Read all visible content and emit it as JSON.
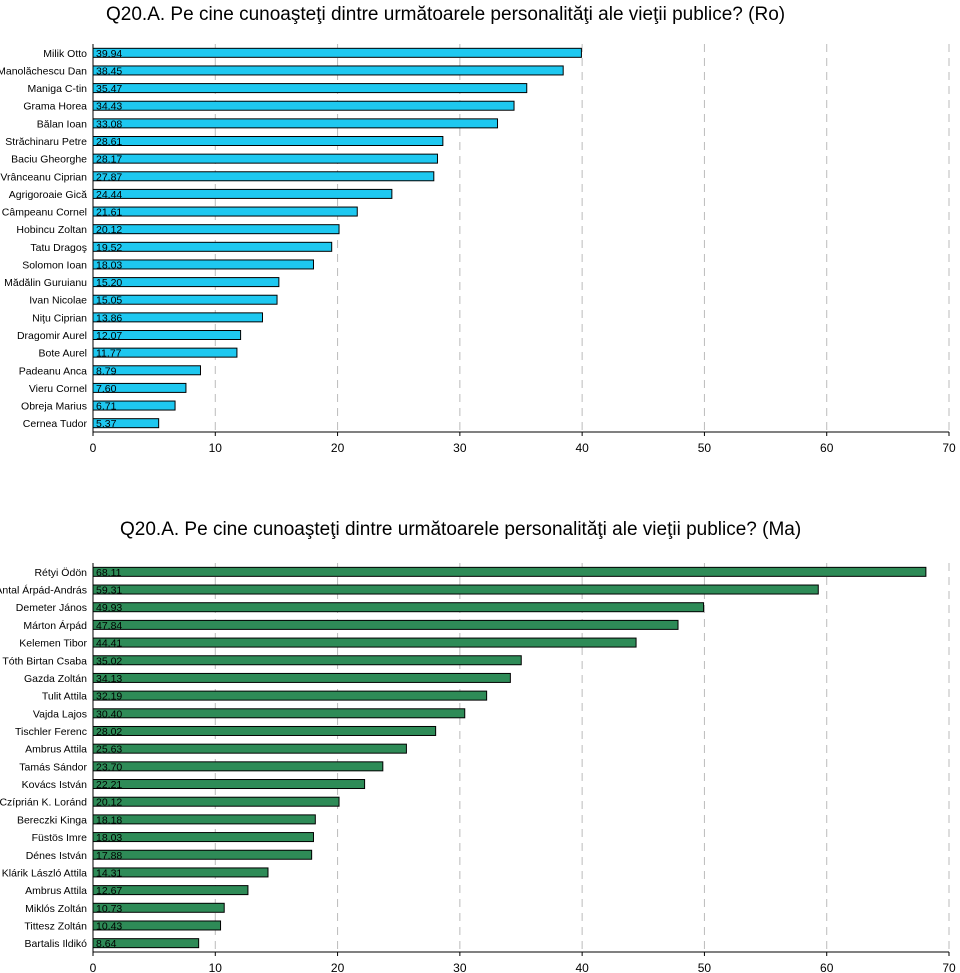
{
  "chart_data": [
    {
      "type": "bar",
      "orientation": "horizontal",
      "title": "Q20.A. Pe cine cunoaşteţi dintre următoarele personalităţi ale vieţii publice? (Ro)",
      "categories": [
        "Milik Otto",
        "Manolăchescu Dan",
        "Maniga C-tin",
        "Grama Horea",
        "Bălan Ioan",
        "Străchinaru Petre",
        "Baciu Gheorghe",
        "Vrânceanu Ciprian",
        "Agrigoroaie Gică",
        "Câmpeanu Cornel",
        "Hobincu Zoltan",
        "Tatu Dragoş",
        "Solomon Ioan",
        "Mădălin Guruianu",
        "Ivan Nicolae",
        "Niţu Ciprian",
        "Dragomir Aurel",
        "Bote Aurel",
        "Padeanu Anca",
        "Vieru Cornel",
        "Obreja Marius",
        "Cernea Tudor"
      ],
      "values": [
        39.94,
        38.45,
        35.47,
        34.43,
        33.08,
        28.61,
        28.17,
        27.87,
        24.44,
        21.61,
        20.12,
        19.52,
        18.03,
        15.2,
        15.05,
        13.86,
        12.07,
        11.77,
        8.79,
        7.6,
        6.71,
        5.37
      ],
      "value_labels": [
        "39.94",
        "38.45",
        "35.47",
        "34.43",
        "33.08",
        "28.61",
        "28.17",
        "27.87",
        "24.44",
        "21.61",
        "20.12",
        "19.52",
        "18.03",
        "15.20",
        "15.05",
        "13.86",
        "12.07",
        "11.77",
        "8.79",
        "7.60",
        "6.71",
        "5.37"
      ],
      "xlim": [
        0,
        70
      ],
      "xticks": [
        "0",
        "10",
        "20",
        "30",
        "40",
        "50",
        "60",
        "70"
      ],
      "grid": "vertical-dashed",
      "bar_color": "#1ec8f0"
    },
    {
      "type": "bar",
      "orientation": "horizontal",
      "title": "Q20.A. Pe cine cunoaşteţi dintre următoarele personalităţi ale vieţii publice? (Ma)",
      "categories": [
        "Rétyi Ödön",
        "Antal Árpád-András",
        "Demeter János",
        "Márton Árpád",
        "Kelemen Tibor",
        "Tóth Birtan Csaba",
        "Gazda Zoltán",
        "Tulit Attila",
        "Vajda Lajos",
        "Tischler Ferenc",
        "Ambrus Attila",
        "Tamás Sándor",
        "Kovács István",
        "Czíprián K. Loránd",
        "Bereczki Kinga",
        "Füstös Imre",
        "Dénes István",
        "Klárik László Attila",
        "Ambrus Attila",
        "Miklós Zoltán",
        "Tittesz Zoltán",
        "Bartalis Ildikó"
      ],
      "values": [
        68.11,
        59.31,
        49.93,
        47.84,
        44.41,
        35.02,
        34.13,
        32.19,
        30.4,
        28.02,
        25.63,
        23.7,
        22.21,
        20.12,
        18.18,
        18.03,
        17.88,
        14.31,
        12.67,
        10.73,
        10.43,
        8.64
      ],
      "value_labels": [
        "68.11",
        "59.31",
        "49.93",
        "47.84",
        "44.41",
        "35.02",
        "34.13",
        "32.19",
        "30.40",
        "28.02",
        "25.63",
        "23.70",
        "22.21",
        "20.12",
        "18.18",
        "18.03",
        "17.88",
        "14.31",
        "12.67",
        "10.73",
        "10.43",
        "8.64"
      ],
      "xlim": [
        0,
        70
      ],
      "xticks": [
        "0",
        "10",
        "20",
        "30",
        "40",
        "50",
        "60",
        "70"
      ],
      "grid": "vertical-dashed",
      "bar_color": "#2e8b57"
    }
  ]
}
